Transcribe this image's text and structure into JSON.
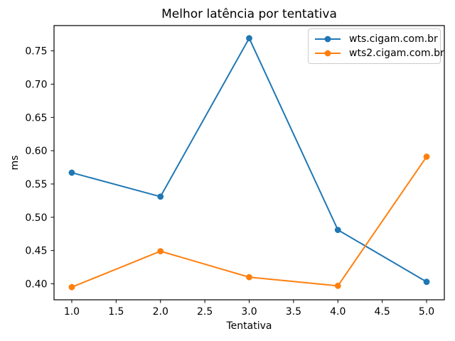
{
  "chart_data": {
    "type": "line",
    "title": "Melhor latência por tentativa",
    "xlabel": "Tentativa",
    "ylabel": "ms",
    "x": [
      1,
      2,
      3,
      4,
      5
    ],
    "series": [
      {
        "name": "wts.cigam.com.br",
        "color": "#1f77b4",
        "marker": "circle",
        "values": [
          0.567,
          0.531,
          0.769,
          0.481,
          0.403
        ]
      },
      {
        "name": "wts2.cigam.com.br",
        "color": "#ff7f0e",
        "marker": "circle",
        "values": [
          0.395,
          0.449,
          0.41,
          0.397,
          0.591
        ]
      }
    ],
    "xlim": [
      0.8,
      5.2
    ],
    "ylim": [
      0.376,
      0.788
    ],
    "xtick_values": [
      1.0,
      1.5,
      2.0,
      2.5,
      3.0,
      3.5,
      4.0,
      4.5,
      5.0
    ],
    "xtick_labels": [
      "1.0",
      "1.5",
      "2.0",
      "2.5",
      "3.0",
      "3.5",
      "4.0",
      "4.5",
      "5.0"
    ],
    "ytick_values": [
      0.4,
      0.45,
      0.5,
      0.55,
      0.6,
      0.65,
      0.7,
      0.75
    ],
    "ytick_labels": [
      "0.40",
      "0.45",
      "0.50",
      "0.55",
      "0.60",
      "0.65",
      "0.70",
      "0.75"
    ],
    "grid": false,
    "legend": {
      "position": "upper-right",
      "entries": [
        "wts.cigam.com.br",
        "wts2.cigam.com.br"
      ]
    },
    "axis_color": "#000000",
    "text_color": "#000000",
    "background": "#ffffff"
  }
}
